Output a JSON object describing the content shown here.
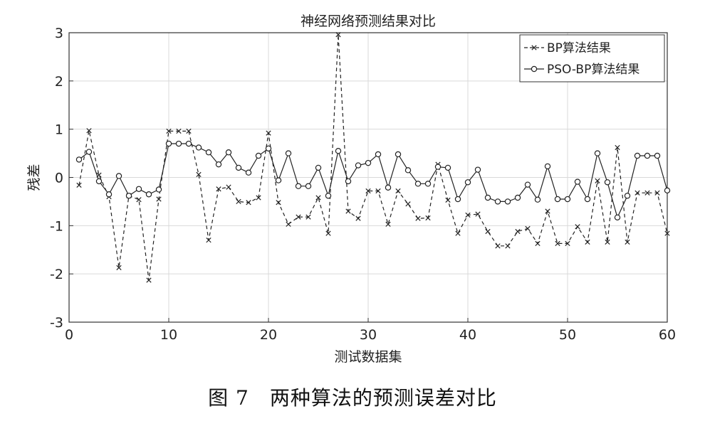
{
  "chart_data": {
    "type": "line",
    "title": "神经网络预测结果对比",
    "xlabel": "测试数据集",
    "ylabel": "残差",
    "xlim": [
      0,
      60
    ],
    "ylim": [
      -3,
      3
    ],
    "xticks": [
      0,
      10,
      20,
      30,
      40,
      50,
      60
    ],
    "yticks": [
      -3,
      -2,
      -1,
      0,
      1,
      2,
      3
    ],
    "grid": true,
    "legend_position": "top-right",
    "x": [
      1,
      2,
      3,
      4,
      5,
      6,
      7,
      8,
      9,
      10,
      11,
      12,
      13,
      14,
      15,
      16,
      17,
      18,
      19,
      20,
      21,
      22,
      23,
      24,
      25,
      26,
      27,
      28,
      29,
      30,
      31,
      32,
      33,
      34,
      35,
      36,
      37,
      38,
      39,
      40,
      41,
      42,
      43,
      44,
      45,
      46,
      47,
      48,
      49,
      50,
      51,
      52,
      53,
      54,
      55,
      56,
      57,
      58,
      59,
      60
    ],
    "series": [
      {
        "name": "BP算法结果",
        "style": "dashed-x",
        "values": [
          -0.16,
          0.97,
          0.05,
          -0.4,
          -1.87,
          -0.38,
          -0.46,
          -2.13,
          -0.45,
          0.96,
          0.96,
          0.96,
          0.06,
          -1.3,
          -0.24,
          -0.2,
          -0.5,
          -0.52,
          -0.42,
          0.92,
          -0.52,
          -0.97,
          -0.82,
          -0.82,
          -0.42,
          -1.16,
          2.96,
          -0.7,
          -0.85,
          -0.28,
          -0.28,
          -0.97,
          -0.28,
          -0.55,
          -0.85,
          -0.84,
          0.27,
          -0.47,
          -1.16,
          -0.78,
          -0.76,
          -1.12,
          -1.42,
          -1.42,
          -1.12,
          -1.06,
          -1.37,
          -0.7,
          -1.37,
          -1.37,
          -1.02,
          -1.34,
          -0.07,
          -1.34,
          0.62,
          -1.34,
          -0.32,
          -0.32,
          -0.32,
          -1.16
        ]
      },
      {
        "name": "PSO-BP算法结果",
        "style": "solid-circle",
        "values": [
          0.37,
          0.53,
          -0.08,
          -0.35,
          0.03,
          -0.38,
          -0.24,
          -0.35,
          -0.25,
          0.7,
          0.7,
          0.7,
          0.62,
          0.52,
          0.27,
          0.52,
          0.2,
          0.1,
          0.45,
          0.6,
          -0.06,
          0.5,
          -0.18,
          -0.18,
          0.2,
          -0.38,
          0.55,
          -0.08,
          0.25,
          0.3,
          0.48,
          -0.21,
          0.48,
          0.15,
          -0.13,
          -0.13,
          0.22,
          0.2,
          -0.45,
          -0.1,
          0.16,
          -0.42,
          -0.5,
          -0.5,
          -0.42,
          -0.15,
          -0.46,
          0.23,
          -0.45,
          -0.45,
          -0.09,
          -0.45,
          0.5,
          -0.1,
          -0.83,
          -0.38,
          0.45,
          0.45,
          0.45,
          -0.27
        ]
      }
    ]
  },
  "caption": "图 7　两种算法的预测误差对比"
}
